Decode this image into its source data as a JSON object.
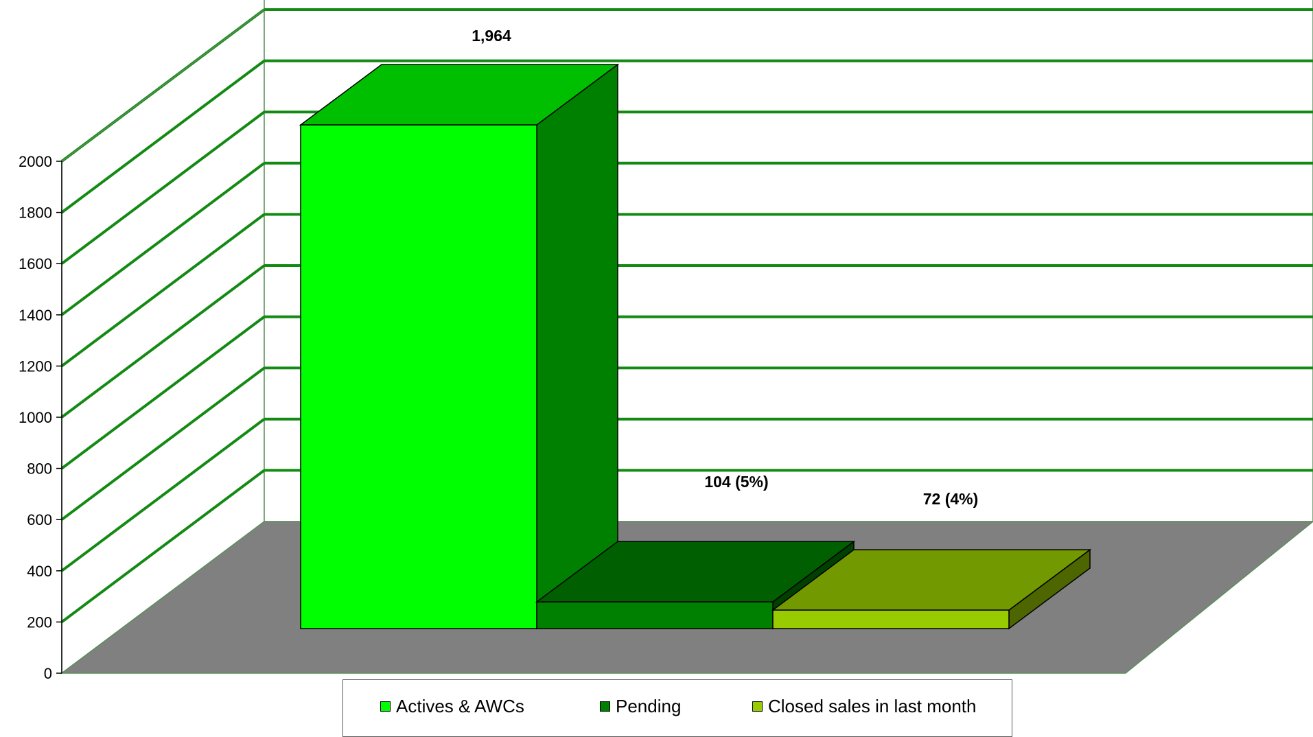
{
  "chart_data": {
    "type": "bar",
    "categories": [
      "Actives & AWCs",
      "Pending",
      "Closed sales in last month"
    ],
    "values": [
      1964,
      104,
      72
    ],
    "data_labels": [
      "1,964",
      "104 (5%)",
      "72 (4%)"
    ],
    "y_ticks": [
      "0",
      "200",
      "400",
      "600",
      "800",
      "1000",
      "1200",
      "1400",
      "1600",
      "1800",
      "2000"
    ],
    "ylim": [
      0,
      2000
    ],
    "grid": true,
    "three_d": true,
    "legend_position": "bottom",
    "title": "",
    "xlabel": "",
    "ylabel": "",
    "series_colors": {
      "front": [
        "#00ff00",
        "#008000",
        "#99cc00"
      ],
      "top": [
        "#00bf00",
        "#005f00",
        "#739900"
      ],
      "side": [
        "#008000",
        "#004000",
        "#4d6600"
      ]
    },
    "grid_color": "#138a13",
    "floor_color": "#808080"
  },
  "legend": {
    "items": [
      {
        "label": "Actives & AWCs",
        "color": "#00ff00"
      },
      {
        "label": "Pending",
        "color": "#008000"
      },
      {
        "label": "Closed sales in last month",
        "color": "#99cc00"
      }
    ]
  }
}
